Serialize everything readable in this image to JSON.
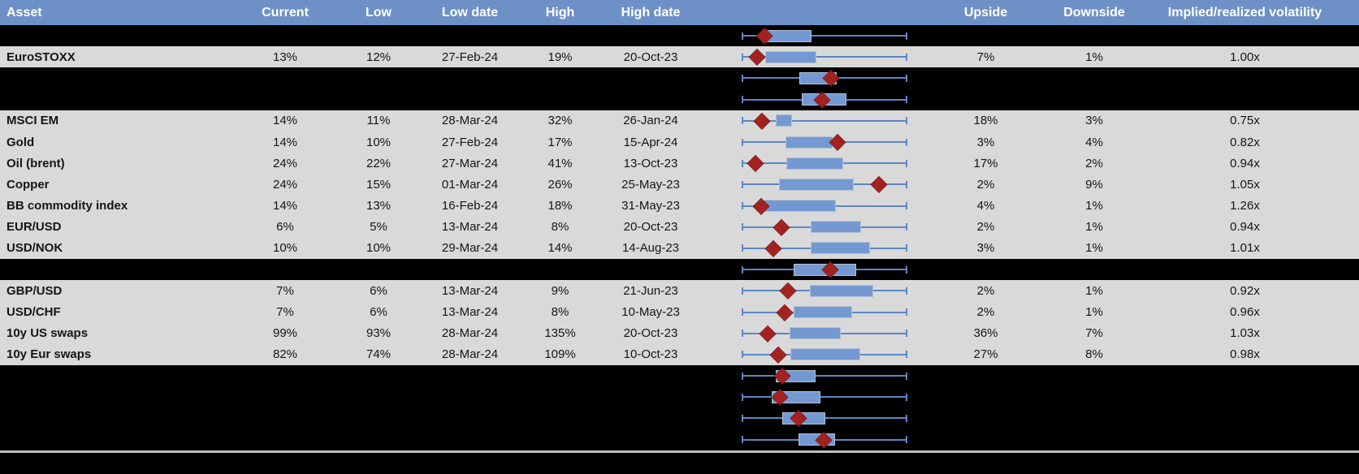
{
  "colors": {
    "header_bg": "#6d91c6",
    "header_text": "#ffffff",
    "row_gray": "#d9d9d9",
    "row_dark": "#000000",
    "whisker_blue": "#5b87c7",
    "box_fill": "#7499d2",
    "box_border": "#b3c0d4",
    "marker_red": "#a32121",
    "divider_gray": "#bfbfbf"
  },
  "header": {
    "columns": [
      {
        "key": "asset",
        "label": "Asset"
      },
      {
        "key": "current",
        "label": "Current"
      },
      {
        "key": "low",
        "label": "Low"
      },
      {
        "key": "low_date",
        "label": "Low date"
      },
      {
        "key": "high",
        "label": "High"
      },
      {
        "key": "high_date",
        "label": "High date"
      },
      {
        "key": "range_plot",
        "label": ""
      },
      {
        "key": "upside",
        "label": "Upside"
      },
      {
        "key": "downside",
        "label": "Downside"
      },
      {
        "key": "implied_realized",
        "label": "Implied/realized volatility"
      }
    ]
  },
  "range_plot_note": "Each row shows a min-max whisker (full low-high range), a blue box (middle range) and a dark-red diamond (current level), normalized 0-1 across the whisker span.",
  "rows": [
    {
      "type": "spacer-dark",
      "box": {
        "lo": 0.134,
        "hi": 0.413,
        "marker": 0.139
      }
    },
    {
      "type": "asset",
      "asset": "EuroSTOXX",
      "current": "13%",
      "low": "12%",
      "low_date": "27-Feb-24",
      "high": "19%",
      "high_date": "20-Oct-23",
      "upside": "7%",
      "downside": "1%",
      "implied_realized": "1.00x",
      "box": {
        "lo": 0.143,
        "hi": 0.442,
        "marker": 0.095
      }
    },
    {
      "type": "spacer-dark",
      "box": {
        "lo": 0.349,
        "hi": 0.565,
        "marker": 0.54
      }
    },
    {
      "type": "spacer-dark",
      "box": {
        "lo": 0.364,
        "hi": 0.623,
        "marker": 0.486
      }
    },
    {
      "type": "asset",
      "asset": "MSCI EM",
      "current": "14%",
      "low": "11%",
      "low_date": "28-Mar-24",
      "high": "32%",
      "high_date": "26-Jan-24",
      "upside": "18%",
      "downside": "3%",
      "implied_realized": "0.75x",
      "box": {
        "lo": 0.207,
        "hi": 0.295,
        "marker": 0.124
      }
    },
    {
      "type": "asset",
      "asset": "Gold",
      "current": "14%",
      "low": "10%",
      "low_date": "27-Feb-24",
      "high": "17%",
      "high_date": "15-Apr-24",
      "upside": "3%",
      "downside": "4%",
      "implied_realized": "0.82x",
      "box": {
        "lo": 0.266,
        "hi": 0.54,
        "marker": 0.579
      }
    },
    {
      "type": "asset",
      "asset": "Oil (brent)",
      "current": "24%",
      "low": "22%",
      "low_date": "27-Mar-24",
      "high": "41%",
      "high_date": "13-Oct-23",
      "upside": "17%",
      "downside": "2%",
      "implied_realized": "0.94x",
      "box": {
        "lo": 0.271,
        "hi": 0.604,
        "marker": 0.085
      }
    },
    {
      "type": "asset",
      "asset": "Copper",
      "current": "24%",
      "low": "15%",
      "low_date": "01-Mar-24",
      "high": "26%",
      "high_date": "25-May-23",
      "upside": "2%",
      "downside": "9%",
      "implied_realized": "1.05x",
      "box": {
        "lo": 0.227,
        "hi": 0.667,
        "marker": 0.829
      }
    },
    {
      "type": "asset",
      "asset": "BB commodity index",
      "current": "14%",
      "low": "13%",
      "low_date": "16-Feb-24",
      "high": "18%",
      "high_date": "31-May-23",
      "upside": "4%",
      "downside": "1%",
      "implied_realized": "1.26x",
      "box": {
        "lo": 0.134,
        "hi": 0.56,
        "marker": 0.119
      }
    },
    {
      "type": "asset",
      "asset": "EUR/USD",
      "current": "6%",
      "low": "5%",
      "low_date": "13-Mar-24",
      "high": "8%",
      "high_date": "20-Oct-23",
      "upside": "2%",
      "downside": "1%",
      "implied_realized": "0.94x",
      "box": {
        "lo": 0.418,
        "hi": 0.711,
        "marker": 0.241
      }
    },
    {
      "type": "asset",
      "asset": "USD/NOK",
      "current": "10%",
      "low": "10%",
      "low_date": "29-Mar-24",
      "high": "14%",
      "high_date": "14-Aug-23",
      "upside": "3%",
      "downside": "1%",
      "implied_realized": "1.01x",
      "box": {
        "lo": 0.418,
        "hi": 0.765,
        "marker": 0.192
      }
    },
    {
      "type": "spacer-dark",
      "box": {
        "lo": 0.315,
        "hi": 0.682,
        "marker": 0.535
      }
    },
    {
      "type": "asset",
      "asset": "GBP/USD",
      "current": "7%",
      "low": "6%",
      "low_date": "13-Mar-24",
      "high": "9%",
      "high_date": "21-Jun-23",
      "upside": "2%",
      "downside": "1%",
      "implied_realized": "0.92x",
      "box": {
        "lo": 0.413,
        "hi": 0.785,
        "marker": 0.28
      }
    },
    {
      "type": "asset",
      "asset": "USD/CHF",
      "current": "7%",
      "low": "6%",
      "low_date": "13-Mar-24",
      "high": "8%",
      "high_date": "10-May-23",
      "upside": "2%",
      "downside": "1%",
      "implied_realized": "0.96x",
      "box": {
        "lo": 0.315,
        "hi": 0.657,
        "marker": 0.261
      }
    },
    {
      "type": "asset",
      "asset": "10y US swaps",
      "current": "99%",
      "low": "93%",
      "low_date": "28-Mar-24",
      "high": "135%",
      "high_date": "20-Oct-23",
      "upside": "36%",
      "downside": "7%",
      "implied_realized": "1.03x",
      "box": {
        "lo": 0.29,
        "hi": 0.589,
        "marker": 0.158
      }
    },
    {
      "type": "asset",
      "asset": "10y Eur swaps",
      "current": "82%",
      "low": "74%",
      "low_date": "28-Mar-24",
      "high": "109%",
      "high_date": "10-Oct-23",
      "upside": "27%",
      "downside": "8%",
      "implied_realized": "0.98x",
      "box": {
        "lo": 0.295,
        "hi": 0.706,
        "marker": 0.222
      }
    },
    {
      "type": "spacer-dark",
      "box": {
        "lo": 0.207,
        "hi": 0.437,
        "marker": 0.246
      }
    },
    {
      "type": "spacer-dark",
      "box": {
        "lo": 0.183,
        "hi": 0.466,
        "marker": 0.231
      }
    },
    {
      "type": "spacer-dark",
      "box": {
        "lo": 0.246,
        "hi": 0.496,
        "marker": 0.344
      }
    },
    {
      "type": "spacer-dark",
      "box": {
        "lo": 0.344,
        "hi": 0.555,
        "marker": 0.496
      }
    }
  ]
}
